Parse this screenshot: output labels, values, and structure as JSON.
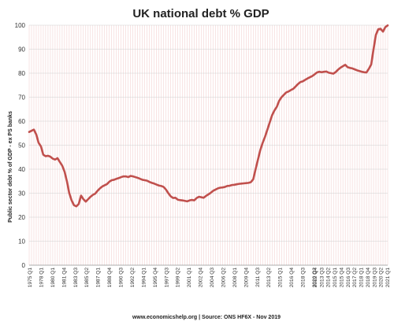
{
  "chart_data": {
    "type": "line",
    "title": "UK national debt % GDP",
    "xlabel": "",
    "ylabel": "Public sector debt % of GDP - ex PS banks",
    "source": "www.economicshelp.org | Source: ONS HF6X - Nov  2019",
    "ylim": [
      0,
      100
    ],
    "yticks": [
      0,
      10,
      20,
      30,
      40,
      50,
      60,
      70,
      80,
      90,
      100
    ],
    "grid": true,
    "legend": "none",
    "series_color": "#c0504d",
    "x_tick_labels": [
      "1975 Q1",
      "1978 Q1",
      "1980 Q1",
      "1981 Q4",
      "1983 Q3",
      "1985 Q2",
      "1987 Q1",
      "1988 Q4",
      "1990 Q3",
      "1992 Q2",
      "1994 Q1",
      "1995 Q4",
      "1997 Q3",
      "1999 Q2",
      "2001 Q1",
      "2002 Q4",
      "2004 Q3",
      "2006 Q2",
      "2008 Q1",
      "2009 Q4",
      "2011 Q3",
      "2013 Q2",
      "2015 Q1",
      "2016 Q4",
      "2018 Q3",
      "2020 Q2"
    ],
    "x_tick_labels_right": [
      "2012 Q4",
      "2013 Q3",
      "2014 Q2",
      "2015 Q1",
      "2015 Q4",
      "2016 Q3",
      "2017 Q2",
      "2018 Q1",
      "2018 Q4",
      "2019 Q3",
      "2020 Q2",
      "2021 Q1"
    ],
    "series": [
      {
        "x_start": "1975 Q1",
        "frequency": "quarterly",
        "values": [
          55.5,
          56,
          56.5,
          54.5,
          51,
          49.5,
          46,
          45.4,
          45.6,
          45.2,
          44.4,
          44,
          44.6,
          43,
          41.5,
          39,
          35,
          30,
          27,
          25,
          24.5,
          25.5,
          29,
          27.5,
          26.5,
          27.5,
          28.5,
          29.3,
          29.8,
          31,
          32,
          32.8,
          33.3,
          33.8,
          34.8,
          35.4,
          35.6,
          36,
          36.3,
          36.7,
          37,
          37,
          36.7,
          37.2,
          37,
          36.7,
          36.4,
          36,
          35.6,
          35.4,
          35.2,
          34.7,
          34.3,
          34,
          33.6,
          33.2,
          33,
          32.6,
          31.5,
          30,
          28.7,
          28,
          28.1,
          27.3,
          27.1,
          27,
          26.8,
          26.6,
          27,
          27.2,
          27,
          28,
          28.5,
          28.3,
          28.1,
          28.9,
          29.5,
          30.2,
          31,
          31.5,
          32,
          32.3,
          32.4,
          32.6,
          33,
          33.1,
          33.4,
          33.5,
          33.7,
          33.9,
          34,
          34.1,
          34.2,
          34.3,
          34.6,
          35.8,
          40,
          44,
          48,
          51,
          53.5,
          56.5,
          59.5,
          62.5,
          64.5,
          66,
          68.5,
          70,
          71,
          72,
          72.4,
          73,
          73.5,
          74.5,
          75.5,
          76.3,
          76.6,
          77.2,
          77.8,
          78.3,
          78.8,
          79.5,
          80.3,
          80.6,
          80.4,
          80.6,
          80.7,
          80.2,
          80,
          79.8,
          80.5,
          81.5,
          82.3,
          82.9,
          83.5,
          82.5,
          82.2,
          82,
          81.6,
          81.2,
          80.9,
          80.6,
          80.4,
          80.3,
          81.8,
          83.6,
          90,
          96,
          98.3,
          98.5,
          97.3,
          99.2,
          99.9
        ]
      }
    ]
  }
}
